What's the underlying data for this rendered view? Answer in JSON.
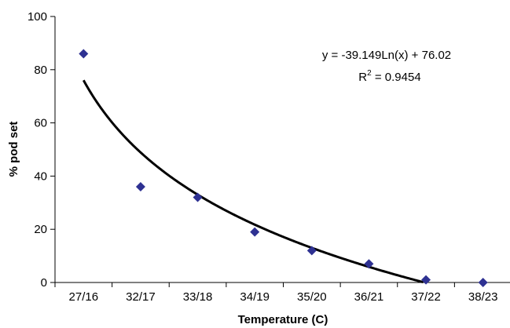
{
  "chart_data": {
    "type": "scatter",
    "categories": [
      "27/16",
      "32/17",
      "33/18",
      "34/19",
      "35/20",
      "36/21",
      "37/22",
      "38/23"
    ],
    "series": [
      {
        "values": [
          86,
          36,
          32,
          19,
          12,
          7,
          1,
          0
        ],
        "marker": "diamond",
        "color": "#2e3192"
      }
    ],
    "trendline": {
      "type": "logarithmic",
      "a": -39.149,
      "b": 76.02,
      "x_index_start": 1,
      "color": "#000000",
      "equation": "y = -39.149Ln(x) + 76.02",
      "r2_prefix": "R",
      "r2_sup": "2",
      "r2_rest": " = 0.9454"
    },
    "xlabel": "Temperature (C)",
    "ylabel": "% pod set",
    "ylim": [
      0,
      100
    ],
    "yticks": [
      "0",
      "20",
      "40",
      "60",
      "80",
      "100"
    ],
    "grid": false
  }
}
